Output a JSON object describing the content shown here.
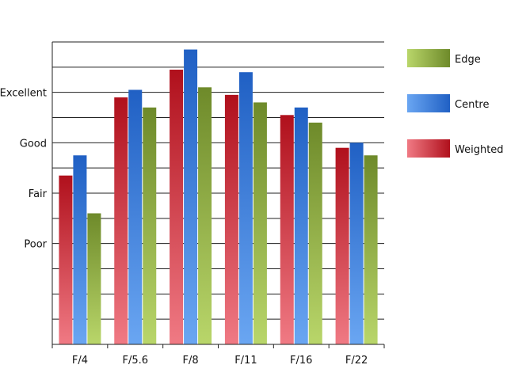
{
  "chart_data": {
    "type": "bar",
    "categories": [
      "F/4",
      "F/5.6",
      "F/8",
      "F/11",
      "F/16",
      "F/22"
    ],
    "y_tick_labels": [
      {
        "value": 1,
        "label": "Poor"
      },
      {
        "value": 2,
        "label": "Fair"
      },
      {
        "value": 3,
        "label": "Good"
      },
      {
        "value": 4,
        "label": "Excellent"
      }
    ],
    "ylim": [
      -1,
      5
    ],
    "grid": true,
    "legend_position": "right",
    "series": [
      {
        "name": "Weighted",
        "values": [
          2.35,
          3.9,
          4.45,
          3.95,
          3.55,
          2.9
        ],
        "color_light": "#f07a84",
        "color_dark": "#b0101c"
      },
      {
        "name": "Centre",
        "values": [
          2.75,
          4.05,
          4.85,
          4.4,
          3.7,
          3.0
        ],
        "color_light": "#6aa6f2",
        "color_dark": "#2060c4"
      },
      {
        "name": "Edge",
        "values": [
          1.6,
          3.7,
          4.1,
          3.8,
          3.4,
          2.75
        ],
        "color_light": "#b9d66a",
        "color_dark": "#6e8a2a"
      }
    ],
    "legend_order": [
      "Edge",
      "Centre",
      "Weighted"
    ]
  }
}
